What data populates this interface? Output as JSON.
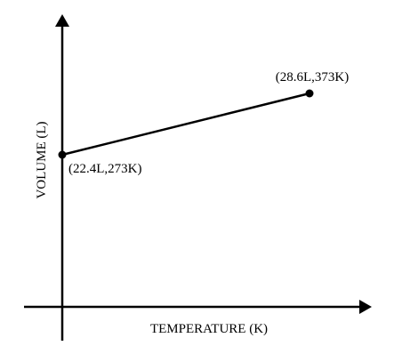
{
  "chart_data": {
    "type": "line",
    "title": "",
    "xlabel": "TEMPERATURE (K)",
    "ylabel": "VOLUME (L)",
    "grid": false,
    "series": [
      {
        "points": [
          {
            "x": 273,
            "y": 22.4,
            "label": "(22.4L,273K)"
          },
          {
            "x": 373,
            "y": 28.6,
            "label": "(28.6L,373K)"
          }
        ]
      }
    ],
    "colors": {
      "line": "#000000",
      "axes": "#000000"
    }
  }
}
